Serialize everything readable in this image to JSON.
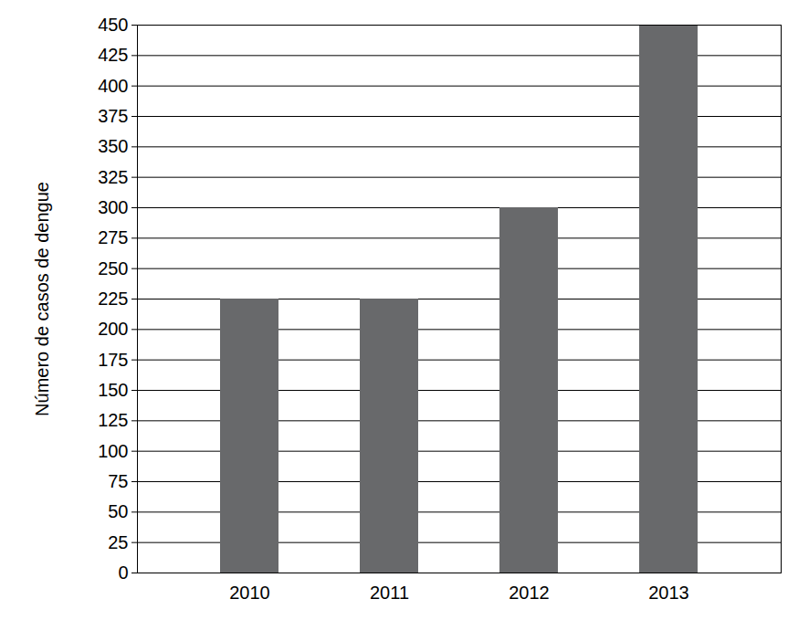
{
  "chart_data": {
    "type": "bar",
    "y_label": "Número de casos de dengue",
    "categories": [
      "2010",
      "2011",
      "2012",
      "2013"
    ],
    "values": [
      225,
      225,
      300,
      450
    ],
    "color": "#68696b",
    "ylim": [
      0,
      450
    ],
    "yticks": [
      0,
      25,
      50,
      75,
      100,
      125,
      150,
      175,
      200,
      225,
      250,
      275,
      300,
      325,
      350,
      375,
      400,
      425,
      450
    ],
    "grid": true
  }
}
